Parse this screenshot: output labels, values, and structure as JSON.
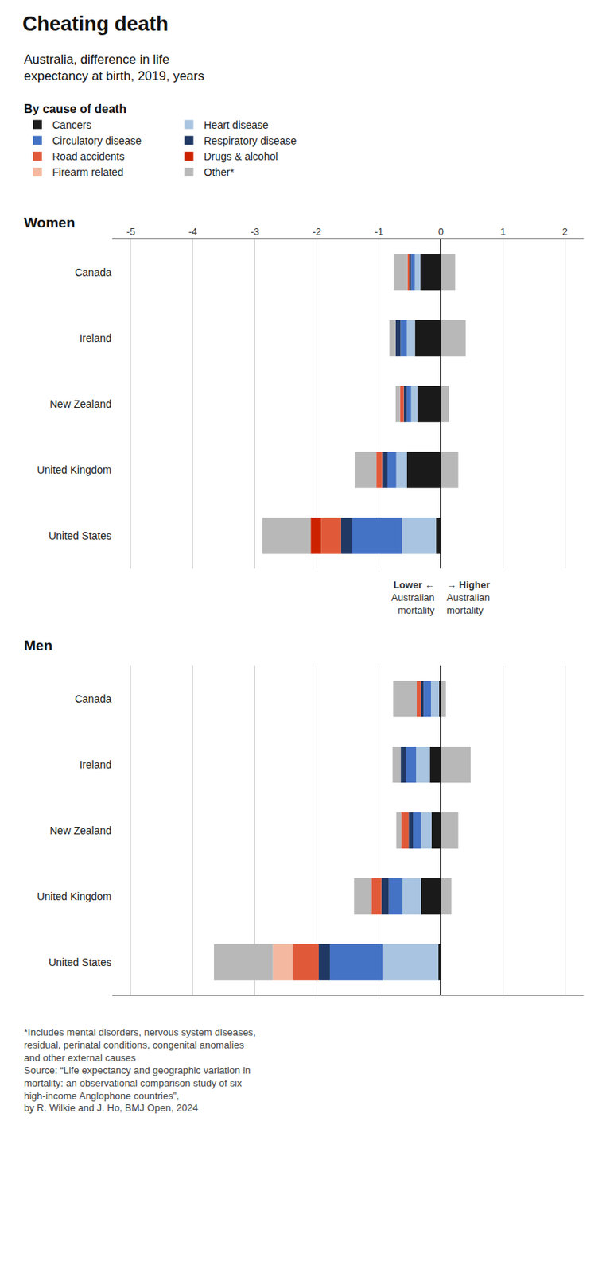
{
  "title": "Cheating death",
  "subtitle": "Australia, difference in life\nexpectancy at birth, 2019, years",
  "annotations": [
    "Lower ←\nAustralian\nmortality",
    "→ Higher\nAustralian\nmortality"
  ],
  "footnote": [
    "*Includes mental disorders, nervous system diseases,",
    "residual, perinatal conditions, congenital anomalies",
    "and other external causes",
    "Source: “Life expectancy and geographic variation in",
    "mortality: an observational comparison study of six",
    "high-income Anglophone countries”,",
    "by R. Wilkie and J. Ho, BMJ Open, 2024"
  ],
  "chart_data": [
    {
      "type": "bar",
      "orientation": "horizontal",
      "stacked": true,
      "title": "Women",
      "legend": "top left",
      "legend_title": "By cause of death",
      "grid": true,
      "categories": [
        "Canada",
        "Ireland",
        "New Zealand",
        "United Kingdom",
        "United States"
      ],
      "xlim": [
        -5.3,
        2.3
      ],
      "xticks": [
        -5,
        -4,
        -3,
        -2,
        -1,
        0,
        1,
        2
      ],
      "series": [
        {
          "name": "Cancers",
          "color": "#1a1a1a",
          "values": [
            -0.33,
            -0.42,
            -0.38,
            -0.55,
            -0.08
          ]
        },
        {
          "name": "Heart disease",
          "color": "#a8c4e0",
          "values": [
            -0.09,
            -0.13,
            -0.1,
            -0.17,
            -0.55
          ]
        },
        {
          "name": "Circulatory disease",
          "color": "#4472c4",
          "values": [
            -0.06,
            -0.1,
            -0.07,
            -0.14,
            -0.8
          ]
        },
        {
          "name": "Respiratory disease",
          "color": "#1f3864",
          "values": [
            -0.03,
            -0.08,
            -0.05,
            -0.09,
            -0.18
          ]
        },
        {
          "name": "Road accidents",
          "color": "#e05a3a",
          "values": [
            -0.03,
            0.0,
            -0.06,
            -0.09,
            -0.32
          ]
        },
        {
          "name": "Drugs & alcohol",
          "color": "#cc2200",
          "values": [
            0.0,
            0.0,
            0.0,
            0.0,
            -0.17
          ]
        },
        {
          "name": "Firearm related",
          "color": "#f4b8a0",
          "values": [
            0.0,
            0.0,
            0.0,
            0.0,
            0.0
          ]
        },
        {
          "name": "Other*",
          "color": "#b8b8b8",
          "values": [
            -0.22,
            -0.1,
            -0.07,
            -0.35,
            -0.78
          ]
        },
        {
          "name": "Other*",
          "color": "#b8b8b8",
          "values": [
            0.23,
            0.4,
            0.13,
            0.28,
            0.0
          ]
        }
      ]
    },
    {
      "type": "bar",
      "orientation": "horizontal",
      "stacked": true,
      "title": "Men",
      "grid": true,
      "tick_labels": "y",
      "categories": [
        "Canada",
        "Ireland",
        "New Zealand",
        "United Kingdom",
        "United States"
      ],
      "xlim": [
        -5.3,
        2.3
      ],
      "xticks": [
        -5,
        -4,
        -3,
        -2,
        -1,
        0,
        1,
        2
      ],
      "series": [
        {
          "name": "Cancers",
          "color": "#1a1a1a",
          "values": [
            -0.03,
            -0.18,
            -0.15,
            -0.32,
            -0.04
          ]
        },
        {
          "name": "Heart disease",
          "color": "#a8c4e0",
          "values": [
            -0.13,
            -0.22,
            -0.17,
            -0.3,
            -0.9
          ]
        },
        {
          "name": "Circulatory disease",
          "color": "#4472c4",
          "values": [
            -0.12,
            -0.16,
            -0.13,
            -0.22,
            -0.85
          ]
        },
        {
          "name": "Respiratory disease",
          "color": "#1f3864",
          "values": [
            -0.04,
            -0.09,
            -0.07,
            -0.12,
            -0.18
          ]
        },
        {
          "name": "Road accidents",
          "color": "#e05a3a",
          "values": [
            -0.07,
            0.0,
            -0.12,
            -0.16,
            -0.42
          ]
        },
        {
          "name": "Drugs & alcohol",
          "color": "#cc2200",
          "values": [
            0.0,
            0.0,
            0.0,
            0.0,
            0.0
          ]
        },
        {
          "name": "Firearm related",
          "color": "#f4b8a0",
          "values": [
            0.0,
            0.0,
            0.0,
            0.0,
            -0.32
          ]
        },
        {
          "name": "Other*",
          "color": "#b8b8b8",
          "values": [
            -0.38,
            -0.13,
            -0.08,
            -0.28,
            -0.95
          ]
        },
        {
          "name": "Other*",
          "color": "#b8b8b8",
          "values": [
            0.08,
            0.48,
            0.28,
            0.17,
            0.0
          ]
        }
      ]
    }
  ]
}
